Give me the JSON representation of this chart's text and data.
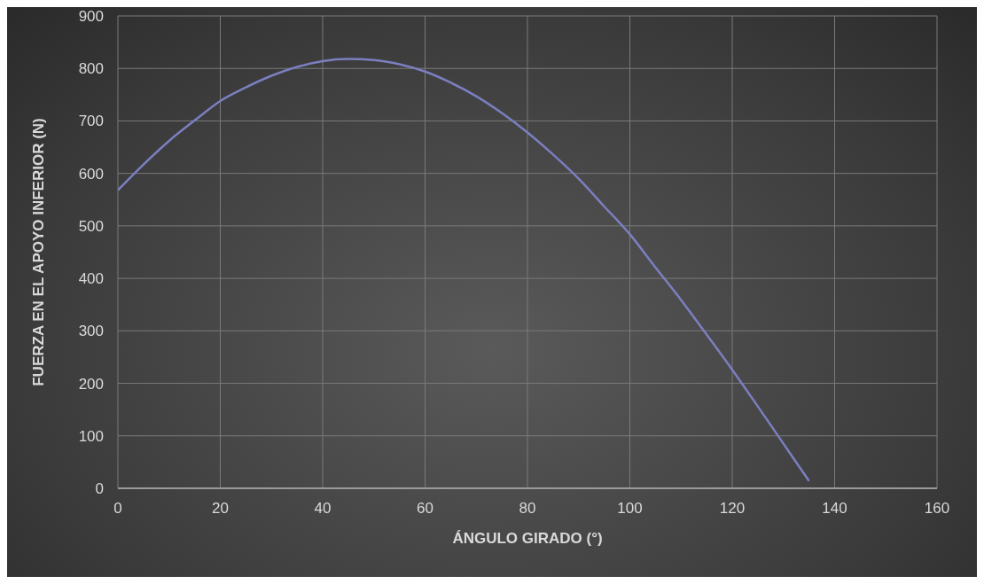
{
  "chart_data": {
    "type": "line",
    "xlabel": "ÁNGULO GIRADO (°)",
    "ylabel": "FUERZA EN EL APOYO INFERIOR (N)",
    "x": [
      0,
      5,
      10,
      15,
      20,
      25,
      30,
      35,
      40,
      45,
      50,
      55,
      60,
      65,
      70,
      75,
      80,
      85,
      90,
      95,
      100,
      105,
      110,
      115,
      120,
      125,
      130,
      135
    ],
    "series": [
      {
        "color": "#7b7fc0",
        "values": [
          568,
          617,
          662,
          701,
          738,
          764,
          786,
          803,
          814,
          818,
          816,
          808,
          794,
          773,
          747,
          715,
          678,
          636,
          590,
          537,
          484,
          421,
          359,
          293,
          226,
          156,
          85,
          14
        ]
      }
    ],
    "xlim": [
      0,
      160
    ],
    "xticks": [
      0,
      20,
      40,
      60,
      80,
      100,
      120,
      140,
      160
    ],
    "ylim": [
      0,
      900
    ],
    "yticks": [
      0,
      100,
      200,
      300,
      400,
      500,
      600,
      700,
      800,
      900
    ],
    "grid": true,
    "legend": false,
    "marker": "none",
    "line_style": "solid"
  }
}
